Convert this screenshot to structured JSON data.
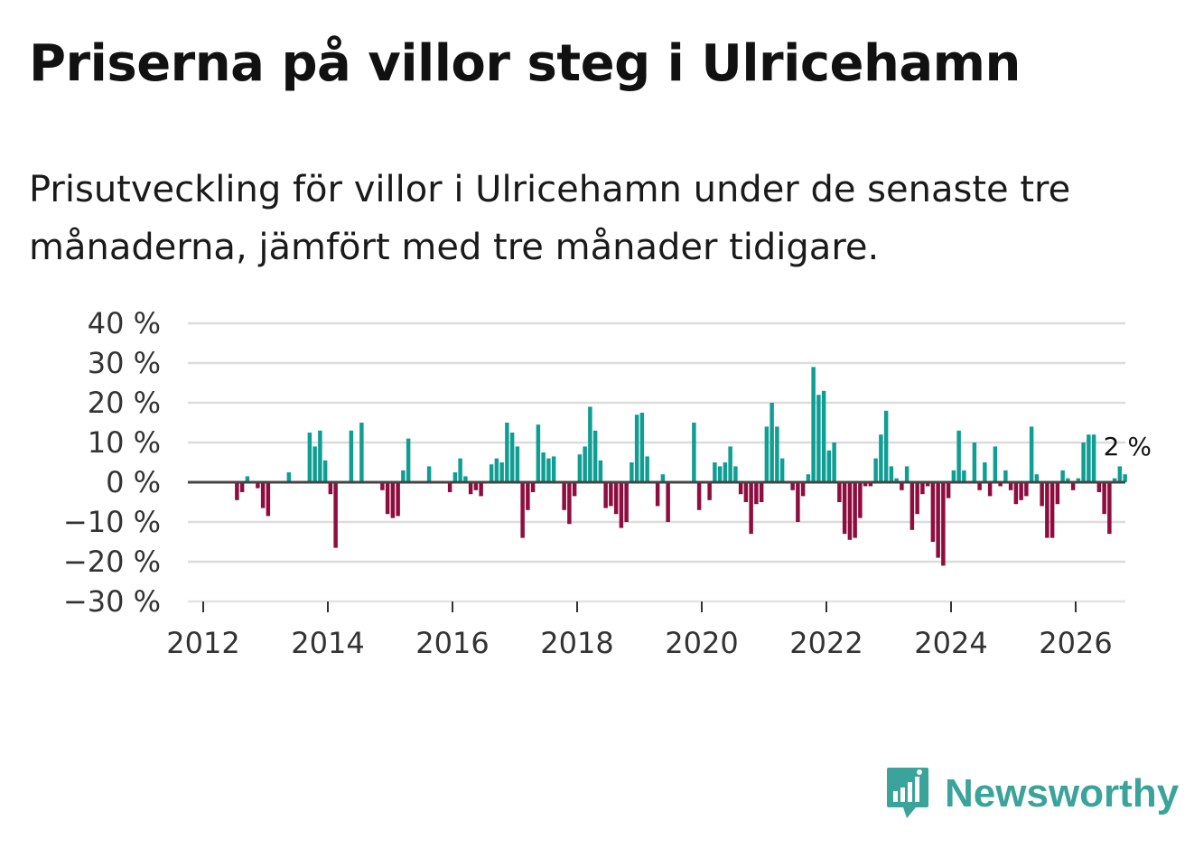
{
  "title": "Priserna på villor steg i Ulricehamn",
  "subtitle": "Prisutveckling för villor i Ulricehamn under de senaste tre månaderna, jämfört med tre månader tidigare.",
  "brand": {
    "name": "Newsworthy",
    "color": "#3aa39a",
    "icon": "newsworthy-logo-icon"
  },
  "colors": {
    "positive": "#0f9e93",
    "negative": "#8e0d3f",
    "grid": "#dcdcdc",
    "zero": "#444444"
  },
  "chart_data": {
    "type": "bar",
    "title": "Priserna på villor steg i Ulricehamn",
    "xlabel": "",
    "ylabel": "",
    "ylim": [
      -30,
      40
    ],
    "yticks": [
      40,
      30,
      20,
      10,
      0,
      -10,
      -20,
      -30
    ],
    "ytick_labels": [
      "40 %",
      "30 %",
      "20 %",
      "10 %",
      "0 %",
      "−10 %",
      "−20 %",
      "−30 %"
    ],
    "xticks": [
      2012,
      2014,
      2016,
      2018,
      2020,
      2022,
      2024,
      2026
    ],
    "xtick_labels": [
      "2012",
      "2014",
      "2016",
      "2018",
      "2020",
      "2022",
      "2024",
      "2026"
    ],
    "x_start": "2012-01",
    "frequency": "monthly",
    "end_label": "2 %",
    "values": [
      0,
      0,
      0,
      0,
      0,
      0,
      -4.5,
      -2.5,
      1.5,
      0,
      -1.5,
      -6.5,
      -8.5,
      0,
      0,
      0,
      2.5,
      0,
      0,
      0,
      12.5,
      9,
      13,
      5.5,
      -3,
      -16.5,
      0,
      0,
      13,
      0,
      15,
      0,
      0,
      0,
      -2,
      -8,
      -9,
      -8.5,
      3,
      11,
      0,
      0,
      0,
      4,
      0,
      0,
      0,
      -2.5,
      2.5,
      6,
      1.5,
      -3,
      -2,
      -3.5,
      0,
      4.5,
      6,
      5,
      15,
      12.5,
      9,
      -14,
      -7,
      -2.5,
      14.5,
      7.5,
      6,
      6.5,
      0,
      -7,
      -10.5,
      -3.5,
      7,
      9,
      19,
      13,
      5.5,
      -6.5,
      -6,
      -8,
      -11.5,
      -10,
      5,
      17,
      17.5,
      6.5,
      0,
      -6,
      2,
      -10,
      0,
      0,
      0,
      0,
      15,
      -7,
      0,
      -4.5,
      5,
      4,
      5,
      9,
      4,
      -3,
      -5,
      -13,
      -5.5,
      -5,
      14,
      20,
      14,
      6,
      0,
      -2,
      -10,
      -3.5,
      2,
      29,
      22,
      23,
      8,
      10,
      -5,
      -13,
      -14.5,
      -14,
      -9,
      -1,
      -1,
      6,
      12,
      18,
      4,
      1,
      -2,
      4,
      -12,
      -8,
      -3,
      -1,
      -15,
      -19,
      -21,
      -4,
      3,
      13,
      3,
      0,
      10,
      -2,
      5,
      -3.5,
      9,
      -1,
      3,
      -2,
      -5.5,
      -4.5,
      -3.5,
      14,
      2,
      -6,
      -14,
      -14,
      -5.5,
      3,
      1,
      -2,
      1,
      10,
      12,
      12,
      -2.5,
      -8,
      -13,
      1,
      4,
      2
    ]
  }
}
